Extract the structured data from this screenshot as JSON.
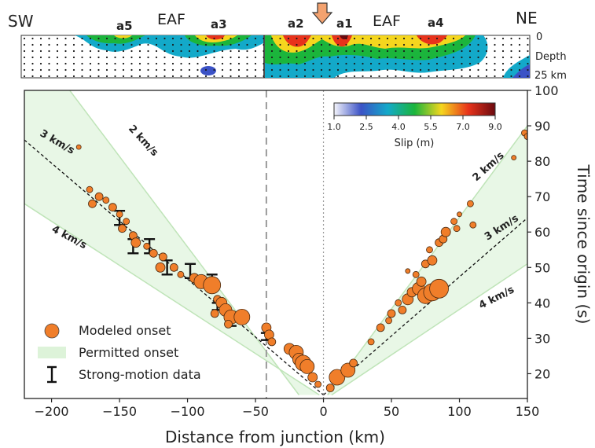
{
  "chart_data": {
    "type": "scatter",
    "slip_panel": {
      "left_label": "SW",
      "right_label": "NE",
      "fault_labels": [
        "EAF",
        "EAF"
      ],
      "asperities": [
        "a5",
        "a3",
        "a2",
        "a1",
        "a4"
      ],
      "depth_top": "0",
      "depth_title": "Depth",
      "depth_bottom": "25 km",
      "epicenter_marker": "arrow"
    },
    "xlabel": "Distance from junction (km)",
    "ylabel": "Time since origin (s)",
    "xlim": [
      -220,
      150
    ],
    "ylim": [
      13,
      100
    ],
    "xticks": [
      -200,
      -150,
      -100,
      -50,
      0,
      50,
      100,
      150
    ],
    "yticks": [
      20,
      30,
      40,
      50,
      60,
      70,
      80,
      90,
      100
    ],
    "junction_x": -42,
    "origin_x": 0,
    "colorbar": {
      "label": "Slip (m)",
      "ticks": [
        "1.0",
        "2.5",
        "4.0",
        "5.5",
        "7.0",
        "9.0"
      ],
      "colors": [
        "#f4f4fb",
        "#3b52c6",
        "#13a9c9",
        "#1bb53c",
        "#f5d61e",
        "#e8331b",
        "#6b0a0f"
      ]
    },
    "velocity_lines": [
      {
        "label": "2 km/s",
        "side": "SW"
      },
      {
        "label": "3 km/s",
        "side": "SW"
      },
      {
        "label": "4 km/s",
        "side": "SW"
      },
      {
        "label": "2 km/s",
        "side": "NE"
      },
      {
        "label": "3 km/s",
        "side": "NE"
      },
      {
        "label": "4 km/s",
        "side": "NE"
      }
    ],
    "permitted_band": {
      "sw": {
        "upper": [
          [
            -220,
            117
          ],
          [
            -18,
            14
          ]
        ],
        "lower": [
          [
            -220,
            68
          ],
          [
            -3,
            14
          ]
        ]
      },
      "ne": {
        "upper": [
          [
            3,
            14
          ],
          [
            150,
            90
          ]
        ],
        "lower": [
          [
            6,
            14
          ],
          [
            150,
            51
          ]
        ]
      }
    },
    "reference_3kms": {
      "sw": [
        [
          -220,
          86
        ],
        [
          0,
          14
        ]
      ],
      "ne": [
        [
          0,
          14
        ],
        [
          150,
          64
        ]
      ]
    },
    "modeled_onset": [
      {
        "x": -180,
        "y": 84,
        "s": 3
      },
      {
        "x": -172,
        "y": 72,
        "s": 4
      },
      {
        "x": -165,
        "y": 70,
        "s": 5
      },
      {
        "x": -170,
        "y": 68,
        "s": 5
      },
      {
        "x": -160,
        "y": 69,
        "s": 4
      },
      {
        "x": -155,
        "y": 67,
        "s": 5
      },
      {
        "x": -150,
        "y": 65,
        "s": 4
      },
      {
        "x": -145,
        "y": 63,
        "s": 4
      },
      {
        "x": -148,
        "y": 61,
        "s": 5
      },
      {
        "x": -140,
        "y": 59,
        "s": 5
      },
      {
        "x": -138,
        "y": 57,
        "s": 6
      },
      {
        "x": -130,
        "y": 56,
        "s": 4
      },
      {
        "x": -125,
        "y": 54,
        "s": 5
      },
      {
        "x": -118,
        "y": 53,
        "s": 5
      },
      {
        "x": -120,
        "y": 50,
        "s": 6
      },
      {
        "x": -110,
        "y": 50,
        "s": 5
      },
      {
        "x": -105,
        "y": 48,
        "s": 4
      },
      {
        "x": -95,
        "y": 47,
        "s": 6
      },
      {
        "x": -90,
        "y": 46,
        "s": 9
      },
      {
        "x": -82,
        "y": 45,
        "s": 11
      },
      {
        "x": -78,
        "y": 41,
        "s": 5
      },
      {
        "x": -75,
        "y": 40,
        "s": 7
      },
      {
        "x": -72,
        "y": 38,
        "s": 8
      },
      {
        "x": -80,
        "y": 37,
        "s": 5
      },
      {
        "x": -68,
        "y": 36,
        "s": 9
      },
      {
        "x": -60,
        "y": 36,
        "s": 10
      },
      {
        "x": -70,
        "y": 34,
        "s": 5
      },
      {
        "x": -42,
        "y": 33,
        "s": 6
      },
      {
        "x": -40,
        "y": 31,
        "s": 6
      },
      {
        "x": -38,
        "y": 29,
        "s": 5
      },
      {
        "x": -25,
        "y": 27,
        "s": 7
      },
      {
        "x": -20,
        "y": 26,
        "s": 9
      },
      {
        "x": -18,
        "y": 24,
        "s": 8
      },
      {
        "x": -15,
        "y": 23,
        "s": 10
      },
      {
        "x": -12,
        "y": 22,
        "s": 9
      },
      {
        "x": -8,
        "y": 19,
        "s": 6
      },
      {
        "x": -4,
        "y": 17,
        "s": 4
      },
      {
        "x": 5,
        "y": 16,
        "s": 5
      },
      {
        "x": 10,
        "y": 19,
        "s": 10
      },
      {
        "x": 18,
        "y": 21,
        "s": 9
      },
      {
        "x": 22,
        "y": 23,
        "s": 5
      },
      {
        "x": 35,
        "y": 29,
        "s": 4
      },
      {
        "x": 42,
        "y": 33,
        "s": 5
      },
      {
        "x": 48,
        "y": 35,
        "s": 4
      },
      {
        "x": 50,
        "y": 37,
        "s": 5
      },
      {
        "x": 58,
        "y": 38,
        "s": 5
      },
      {
        "x": 55,
        "y": 40,
        "s": 4
      },
      {
        "x": 62,
        "y": 41,
        "s": 7
      },
      {
        "x": 65,
        "y": 43,
        "s": 6
      },
      {
        "x": 70,
        "y": 44,
        "s": 8
      },
      {
        "x": 75,
        "y": 42,
        "s": 10
      },
      {
        "x": 80,
        "y": 43,
        "s": 11
      },
      {
        "x": 85,
        "y": 44,
        "s": 12
      },
      {
        "x": 72,
        "y": 46,
        "s": 6
      },
      {
        "x": 68,
        "y": 48,
        "s": 4
      },
      {
        "x": 62,
        "y": 49,
        "s": 3
      },
      {
        "x": 75,
        "y": 51,
        "s": 5
      },
      {
        "x": 80,
        "y": 52,
        "s": 6
      },
      {
        "x": 78,
        "y": 55,
        "s": 4
      },
      {
        "x": 85,
        "y": 57,
        "s": 5
      },
      {
        "x": 88,
        "y": 58,
        "s": 5
      },
      {
        "x": 90,
        "y": 60,
        "s": 6
      },
      {
        "x": 98,
        "y": 61,
        "s": 4
      },
      {
        "x": 96,
        "y": 63,
        "s": 4
      },
      {
        "x": 100,
        "y": 65,
        "s": 3
      },
      {
        "x": 108,
        "y": 68,
        "s": 4
      },
      {
        "x": 110,
        "y": 62,
        "s": 4
      },
      {
        "x": 140,
        "y": 81,
        "s": 3
      },
      {
        "x": 148,
        "y": 88,
        "s": 4
      },
      {
        "x": 150,
        "y": 87,
        "s": 4
      }
    ],
    "strong_motion": [
      {
        "x": -150,
        "y": 64,
        "err": 2
      },
      {
        "x": -140,
        "y": 56,
        "err": 2
      },
      {
        "x": -128,
        "y": 56,
        "err": 2
      },
      {
        "x": -115,
        "y": 50,
        "err": 2
      },
      {
        "x": -98,
        "y": 49,
        "err": 2
      },
      {
        "x": -82,
        "y": 46,
        "err": 2
      },
      {
        "x": -78,
        "y": 39,
        "err": 1
      },
      {
        "x": -68,
        "y": 35,
        "err": 1.5
      },
      {
        "x": -42,
        "y": 30.5,
        "err": 1
      }
    ],
    "legend": {
      "position": "bottom-left",
      "items": [
        "Modeled onset",
        "Permitted onset",
        "Strong-motion data"
      ]
    }
  }
}
